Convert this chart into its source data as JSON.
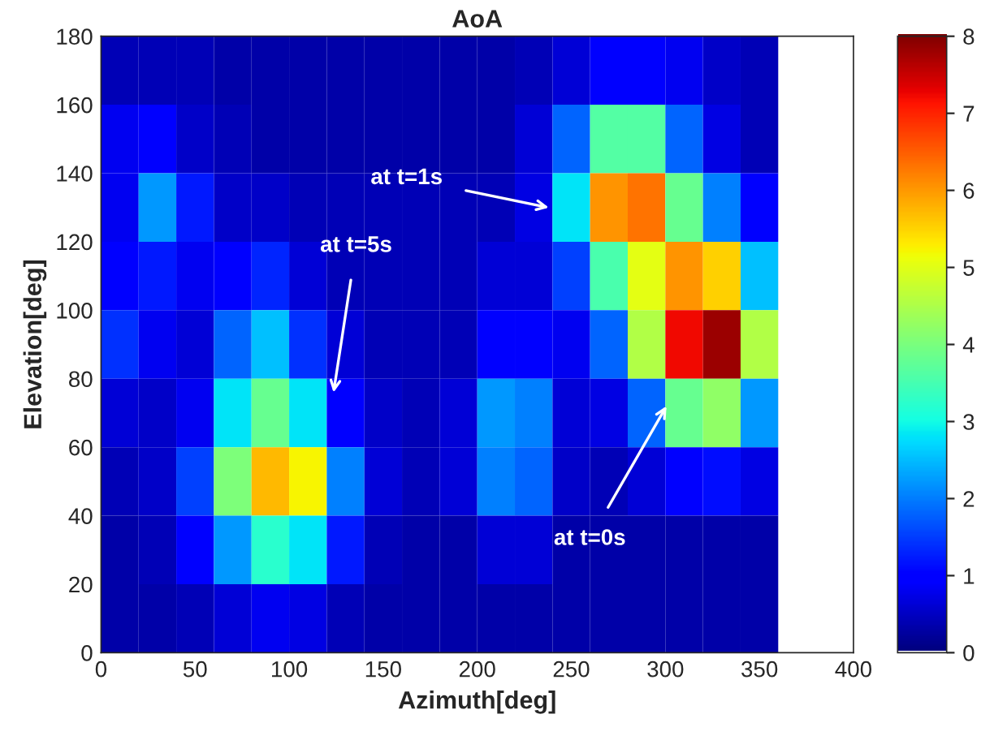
{
  "chart_data": {
    "type": "heatmap",
    "title": "AoA",
    "xlabel": "Azimuth[deg]",
    "ylabel": "Elevation[deg]",
    "x": [
      10,
      30,
      50,
      70,
      90,
      110,
      130,
      150,
      170,
      190,
      210,
      230,
      250,
      270,
      290,
      310,
      330,
      350
    ],
    "y": [
      170,
      150,
      130,
      110,
      90,
      70,
      50,
      30,
      10
    ],
    "cells": [
      [
        0.4,
        0.4,
        0.4,
        0.3,
        0.3,
        0.3,
        0.3,
        0.3,
        0.3,
        0.3,
        0.3,
        0.4,
        0.6,
        0.9,
        1.0,
        0.8,
        0.5,
        0.4
      ],
      [
        0.8,
        0.9,
        0.5,
        0.4,
        0.3,
        0.3,
        0.3,
        0.3,
        0.3,
        0.3,
        0.3,
        0.6,
        1.8,
        3.6,
        3.6,
        1.8,
        0.7,
        0.4
      ],
      [
        0.8,
        2.2,
        1.2,
        0.5,
        0.5,
        0.4,
        0.4,
        0.4,
        0.4,
        0.4,
        0.4,
        0.7,
        2.8,
        6.0,
        6.3,
        3.8,
        2.0,
        0.9
      ],
      [
        0.9,
        1.2,
        0.8,
        0.9,
        1.3,
        0.6,
        0.4,
        0.4,
        0.4,
        0.4,
        0.6,
        0.6,
        1.5,
        3.5,
        5.0,
        6.0,
        5.5,
        2.5
      ],
      [
        1.4,
        0.8,
        0.6,
        1.8,
        2.5,
        1.4,
        0.6,
        0.4,
        0.4,
        0.4,
        1.0,
        1.0,
        0.8,
        1.8,
        4.5,
        7.2,
        7.8,
        4.5
      ],
      [
        0.6,
        0.5,
        0.8,
        2.8,
        3.8,
        2.8,
        1.0,
        0.5,
        0.4,
        0.6,
        2.2,
        2.0,
        0.6,
        0.7,
        1.8,
        3.8,
        4.2,
        2.2
      ],
      [
        0.4,
        0.5,
        1.5,
        4.0,
        5.7,
        5.2,
        2.0,
        0.6,
        0.4,
        0.6,
        2.0,
        1.8,
        0.5,
        0.4,
        0.6,
        1.0,
        1.1,
        0.7
      ],
      [
        0.3,
        0.4,
        0.9,
        2.2,
        3.2,
        2.8,
        1.2,
        0.4,
        0.3,
        0.3,
        0.6,
        0.6,
        0.3,
        0.3,
        0.3,
        0.3,
        0.3,
        0.3
      ],
      [
        0.3,
        0.3,
        0.4,
        0.6,
        0.8,
        0.7,
        0.4,
        0.3,
        0.3,
        0.3,
        0.3,
        0.3,
        0.3,
        0.3,
        0.3,
        0.3,
        0.3,
        0.3
      ]
    ],
    "xlim": [
      0,
      400
    ],
    "ylim": [
      0,
      180
    ],
    "xticks": [
      0,
      50,
      100,
      150,
      200,
      250,
      300,
      350,
      400
    ],
    "yticks": [
      0,
      20,
      40,
      60,
      80,
      100,
      120,
      140,
      160,
      180
    ],
    "clim": [
      0,
      8
    ],
    "cticks": [
      0,
      1,
      2,
      3,
      4,
      5,
      6,
      7,
      8
    ],
    "grid": false,
    "annotations": [
      "at t=1s",
      "at t=5s",
      "at t=0s"
    ]
  }
}
